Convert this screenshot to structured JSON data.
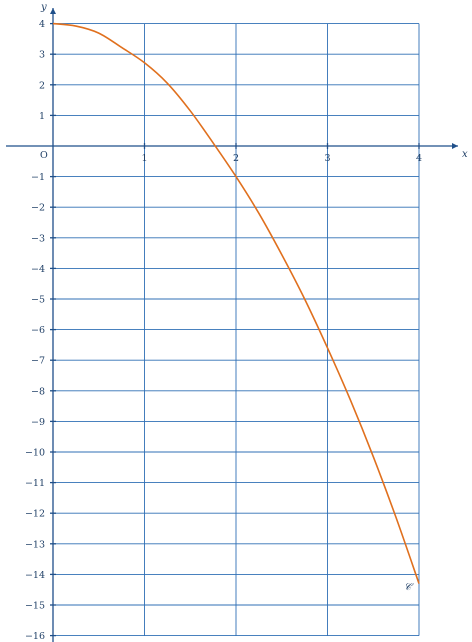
{
  "chart_data": {
    "type": "line",
    "title": "",
    "xlabel": "x",
    "ylabel": "y",
    "origin_label": "O",
    "xlim": [
      0,
      4
    ],
    "ylim": [
      -16,
      4
    ],
    "grid": true,
    "x_ticks": [
      1,
      2,
      3,
      4
    ],
    "x_tick_labels": [
      "1",
      "2",
      "3",
      "4"
    ],
    "y_ticks": [
      4,
      3,
      2,
      1,
      -1,
      -2,
      -3,
      -4,
      -5,
      -6,
      -7,
      -8,
      -9,
      -10,
      -11,
      -12,
      -13,
      -14,
      -15,
      -16
    ],
    "y_tick_labels": [
      "4",
      "3",
      "2",
      "1",
      "−1",
      "−2",
      "−3",
      "−4",
      "−5",
      "−6",
      "−7",
      "−8",
      "−9",
      "−10",
      "−11",
      "−12",
      "−13",
      "−14",
      "−15",
      "−16"
    ],
    "curve_color": "#e0701e",
    "grid_color": "#2f6fb5",
    "series": [
      {
        "name": "𝒞",
        "x": [
          0,
          0.25,
          0.5,
          0.75,
          1,
          1.25,
          1.5,
          1.75,
          2,
          2.25,
          2.5,
          2.75,
          3,
          3.25,
          3.5,
          3.75,
          4
        ],
        "y": [
          4,
          3.92,
          3.69,
          3.22,
          2.72,
          2.05,
          1.15,
          0.1,
          -1.0,
          -2.2,
          -3.55,
          -5.0,
          -6.6,
          -8.3,
          -10.15,
          -12.15,
          -14.3
        ]
      }
    ]
  }
}
